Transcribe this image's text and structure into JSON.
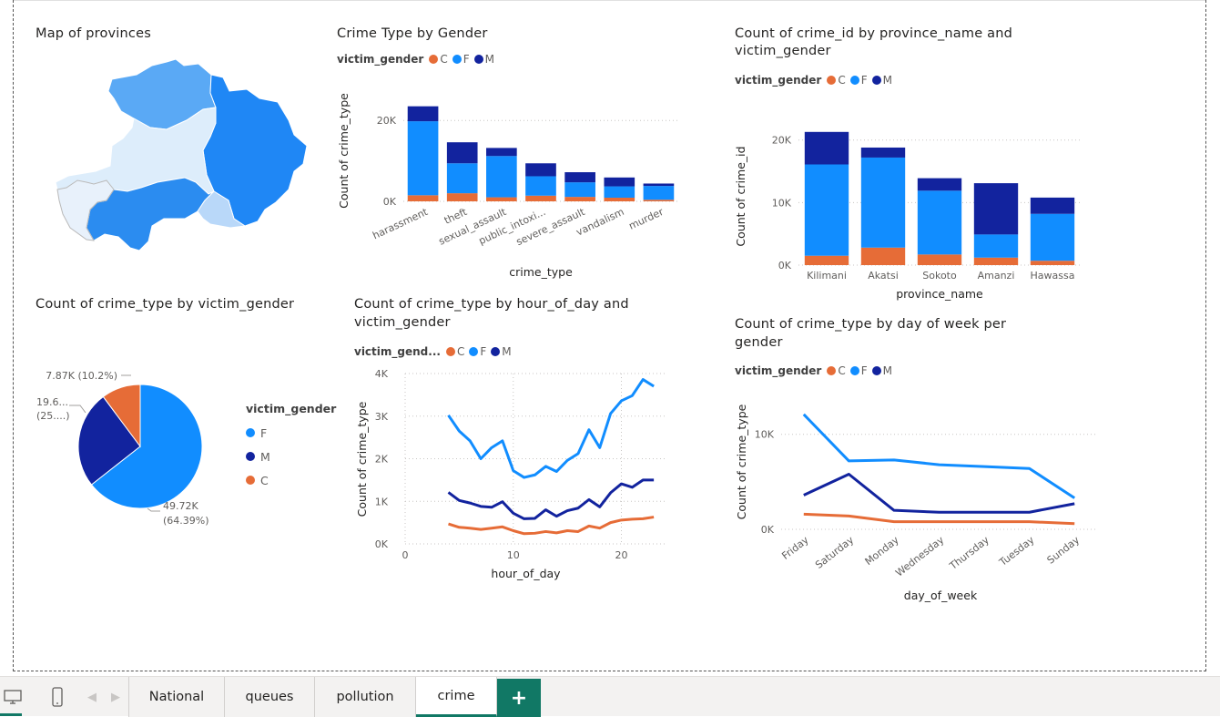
{
  "colors": {
    "C": "#e66c37",
    "F": "#118dff",
    "M": "#12239e",
    "accent": "#117865"
  },
  "map": {
    "title": "Map of provinces"
  },
  "crime_by_gender": {
    "title": "Crime Type by Gender",
    "legend_title": "victim_gender",
    "legend": [
      "C",
      "F",
      "M"
    ],
    "y_axis_title": "Count of crime_type",
    "x_axis_title": "crime_type",
    "y_ticks": [
      "0K",
      "20K"
    ]
  },
  "province_chart": {
    "title_line1": "Count of crime_id by province_name and",
    "title_line2": "victim_gender",
    "legend_title": "victim_gender",
    "legend": [
      "C",
      "F",
      "M"
    ],
    "y_axis_title": "Count of crime_id",
    "x_axis_title": "province_name",
    "y_ticks": [
      "0K",
      "10K",
      "20K"
    ]
  },
  "pie": {
    "title": "Count of crime_type by victim_gender",
    "legend_title": "victim_gender",
    "legend": [
      "F",
      "M",
      "C"
    ],
    "label_c": "7.87K (10.2%)",
    "label_m1": "19.6...",
    "label_m2": "(25....)",
    "label_f1": "49.72K",
    "label_f2": "(64.39%)"
  },
  "hour_chart": {
    "title_line1": "Count of crime_type by hour_of_day and",
    "title_line2": "victim_gender",
    "legend_title": "victim_gend...",
    "legend": [
      "C",
      "F",
      "M"
    ],
    "y_axis_title": "Count of crime_type",
    "x_axis_title": "hour_of_day",
    "y_ticks": [
      "0K",
      "1K",
      "2K",
      "3K",
      "4K"
    ],
    "x_ticks": [
      "0",
      "10",
      "20"
    ]
  },
  "week_chart": {
    "title_line1": "Count of crime_type by day of week per",
    "title_line2": "gender",
    "legend_title": "victim_gender",
    "legend": [
      "C",
      "F",
      "M"
    ],
    "y_axis_title": "Count of crime_type",
    "x_axis_title": "day_of_week",
    "y_ticks": [
      "0K",
      "10K"
    ]
  },
  "tabs": {
    "items": [
      "National",
      "queues",
      "pollution",
      "crime"
    ],
    "active": "crime",
    "add_label": "+"
  },
  "chart_data": [
    {
      "type": "bar",
      "title": "Crime Type by Gender",
      "xlabel": "crime_type",
      "ylabel": "Count of crime_type",
      "categories": [
        "harassment",
        "theft",
        "sexual_assault",
        "public_intoxi...",
        "severe_assault",
        "vandalism",
        "murder"
      ],
      "series": [
        {
          "name": "C",
          "values": [
            1500,
            2000,
            1000,
            1400,
            1100,
            900,
            400
          ]
        },
        {
          "name": "F",
          "values": [
            18300,
            7400,
            10200,
            4800,
            3600,
            2800,
            3400
          ]
        },
        {
          "name": "M",
          "values": [
            3700,
            5200,
            2000,
            3200,
            2500,
            2200,
            600
          ]
        }
      ],
      "ylim": [
        0,
        25000
      ],
      "stacked": true
    },
    {
      "type": "bar",
      "title": "Count of crime_id by province_name and victim_gender",
      "xlabel": "province_name",
      "ylabel": "Count of crime_id",
      "categories": [
        "Kilimani",
        "Akatsi",
        "Sokoto",
        "Amanzi",
        "Hawassa"
      ],
      "series": [
        {
          "name": "C",
          "values": [
            1500,
            2800,
            1700,
            1200,
            700
          ]
        },
        {
          "name": "F",
          "values": [
            14600,
            14400,
            10200,
            3700,
            7500
          ]
        },
        {
          "name": "M",
          "values": [
            5200,
            1600,
            2000,
            8200,
            2600
          ]
        }
      ],
      "ylim": [
        0,
        22000
      ],
      "stacked": true
    },
    {
      "type": "pie",
      "title": "Count of crime_type by victim_gender",
      "categories": [
        "F",
        "M",
        "C"
      ],
      "values": [
        49720,
        19600,
        7870
      ],
      "percent": [
        64.39,
        25.4,
        10.2
      ]
    },
    {
      "type": "line",
      "title": "Count of crime_type by hour_of_day and victim_gender",
      "xlabel": "hour_of_day",
      "ylabel": "Count of crime_type",
      "x": [
        4,
        5,
        6,
        7,
        8,
        9,
        10,
        11,
        12,
        13,
        14,
        15,
        16,
        17,
        18,
        19,
        20,
        21,
        22,
        23
      ],
      "series": [
        {
          "name": "F",
          "values": [
            3020,
            2650,
            2420,
            2000,
            2260,
            2420,
            1720,
            1560,
            1620,
            1820,
            1700,
            1960,
            2120,
            2680,
            2260,
            3060,
            3360,
            3480,
            3860,
            3700
          ]
        },
        {
          "name": "M",
          "values": [
            1210,
            1020,
            960,
            880,
            860,
            990,
            720,
            590,
            600,
            800,
            650,
            780,
            840,
            1040,
            870,
            1200,
            1410,
            1330,
            1500,
            1500
          ]
        },
        {
          "name": "C",
          "values": [
            470,
            390,
            370,
            340,
            370,
            400,
            310,
            240,
            250,
            290,
            260,
            310,
            290,
            420,
            370,
            500,
            560,
            580,
            590,
            630
          ]
        }
      ],
      "xlim": [
        0,
        24
      ],
      "ylim": [
        0,
        4000
      ]
    },
    {
      "type": "line",
      "title": "Count of crime_type by day of week per gender",
      "xlabel": "day_of_week",
      "ylabel": "Count of crime_type",
      "categories": [
        "Friday",
        "Saturday",
        "Monday",
        "Wednesday",
        "Thursday",
        "Tuesday",
        "Sunday"
      ],
      "series": [
        {
          "name": "C",
          "values": [
            1600,
            1400,
            800,
            800,
            800,
            800,
            600
          ]
        },
        {
          "name": "F",
          "values": [
            12100,
            7200,
            7300,
            6800,
            6600,
            6400,
            3300
          ]
        },
        {
          "name": "M",
          "values": [
            3600,
            5800,
            2000,
            1800,
            1800,
            1800,
            2700
          ]
        }
      ],
      "ylim": [
        0,
        14000
      ]
    }
  ]
}
